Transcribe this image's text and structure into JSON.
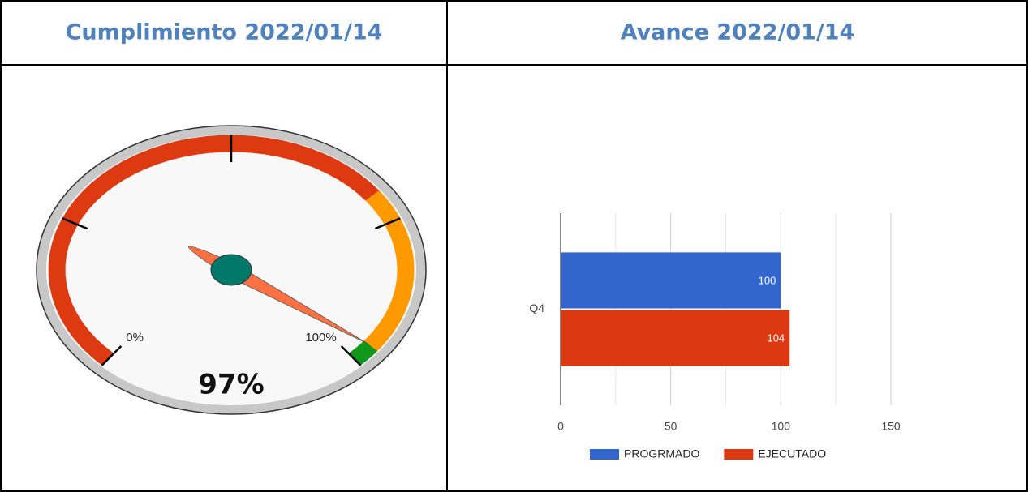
{
  "header": {
    "left": "Cumplimiento 2022/01/14",
    "right": "Avance 2022/01/14"
  },
  "chart_data": [
    {
      "type": "gauge",
      "value": 97,
      "value_label": "97%",
      "min": 0,
      "max": 100,
      "ticks": [
        {
          "value": 0,
          "label": "0%"
        },
        {
          "value": 100,
          "label": "100%"
        }
      ],
      "minor_ticks": [
        25,
        50,
        75
      ],
      "bands": [
        {
          "from": 0,
          "to": 70,
          "color": "#dd3a12"
        },
        {
          "from": 70,
          "to": 97,
          "color": "#ff9900"
        },
        {
          "from": 97,
          "to": 100,
          "color": "#109618"
        }
      ],
      "needle_color": "#ff7043",
      "hub_color": "#00796b"
    },
    {
      "type": "hbar",
      "categories": [
        "Q4"
      ],
      "series": [
        {
          "name": "PROGRMADO",
          "color": "#3366cc",
          "values": [
            100
          ]
        },
        {
          "name": "EJECUTADO",
          "color": "#dc3912",
          "values": [
            104
          ]
        }
      ],
      "xlim": [
        0,
        150
      ],
      "xticks": [
        0,
        50,
        100,
        150
      ],
      "minor_grid": [
        25,
        75,
        125
      ],
      "grid": true,
      "legend": "bottom"
    }
  ]
}
